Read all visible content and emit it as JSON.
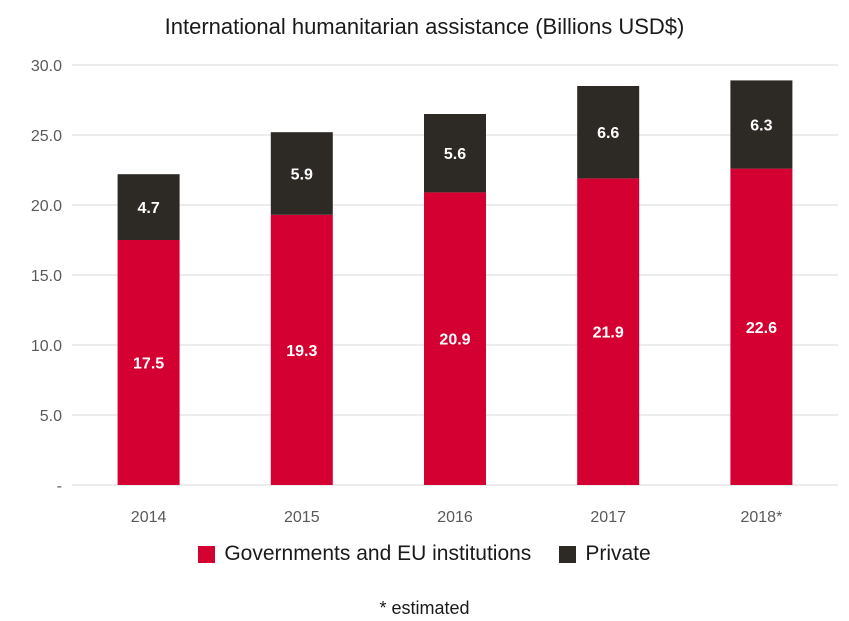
{
  "chart_data": {
    "type": "bar",
    "stacked": true,
    "title": "International humanitarian assistance (Billions USD$)",
    "categories": [
      "2014",
      "2015",
      "2016",
      "2017",
      "2018*"
    ],
    "series": [
      {
        "name": "Governments and EU institutions",
        "values": [
          17.5,
          19.3,
          20.9,
          21.9,
          22.6
        ],
        "labels": [
          "17.5",
          "19.3",
          "20.9",
          "21.9",
          "22.6"
        ],
        "color": "#d50032"
      },
      {
        "name": "Private",
        "values": [
          4.7,
          5.9,
          5.6,
          6.6,
          6.3
        ],
        "labels": [
          "4.7",
          "5.9",
          "5.6",
          "6.6",
          "6.3"
        ],
        "color": "#2d2a26"
      }
    ],
    "yticks": [
      "-",
      "5.0",
      "10.0",
      "15.0",
      "20.0",
      "25.0",
      "30.0"
    ],
    "ylim": [
      0,
      30
    ],
    "grid": true,
    "legend_position": "bottom",
    "footnote": "* estimated"
  }
}
